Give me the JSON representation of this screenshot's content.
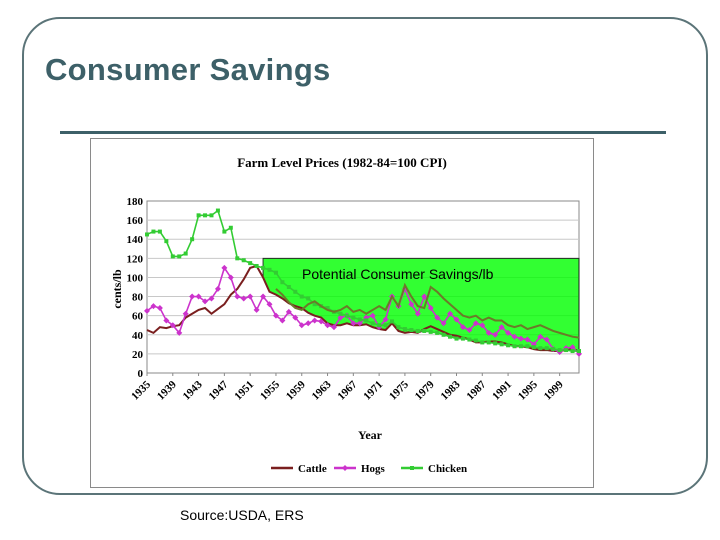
{
  "slide": {
    "title": "Consumer Savings",
    "source": "Source:USDA, ERS"
  },
  "chart_data": {
    "type": "line",
    "title": "Farm Level Prices (1982-84=100 CPI)",
    "xlabel": "Year",
    "ylabel": "cents/lb",
    "xlim": [
      1935,
      2002
    ],
    "ylim": [
      0,
      180
    ],
    "y_ticks": [
      0,
      20,
      40,
      60,
      80,
      100,
      120,
      140,
      160,
      180
    ],
    "x_ticks": [
      1935,
      1939,
      1943,
      1947,
      1951,
      1955,
      1959,
      1963,
      1967,
      1971,
      1975,
      1979,
      1983,
      1987,
      1991,
      1995,
      1999
    ],
    "grid": "horizontal",
    "legend": "bottom",
    "annotation": "Potential Consumer Savings/lb",
    "annotation_region": {
      "color": "#00ff00",
      "x_start": 1953,
      "x_end": 2002,
      "top": 120
    },
    "series": [
      {
        "name": "Cattle",
        "color": "#7a1f1f",
        "marker": "none",
        "x": [
          1935,
          1936,
          1937,
          1938,
          1939,
          1940,
          1941,
          1942,
          1943,
          1944,
          1945,
          1946,
          1947,
          1948,
          1949,
          1950,
          1951,
          1952,
          1953,
          1954,
          1955,
          1956,
          1957,
          1958,
          1959,
          1960,
          1961,
          1962,
          1963,
          1964,
          1965,
          1966,
          1967,
          1968,
          1969,
          1970,
          1971,
          1972,
          1973,
          1974,
          1975,
          1976,
          1977,
          1978,
          1979,
          1980,
          1981,
          1982,
          1983,
          1984,
          1985,
          1986,
          1987,
          1988,
          1989,
          1990,
          1991,
          1992,
          1993,
          1994,
          1995,
          1996,
          1997,
          1998,
          1999,
          2000,
          2001,
          2002
        ],
        "values": [
          45,
          42,
          48,
          47,
          49,
          50,
          58,
          62,
          66,
          68,
          62,
          67,
          72,
          82,
          88,
          98,
          110,
          112,
          100,
          85,
          82,
          78,
          73,
          70,
          68,
          63,
          60,
          58,
          52,
          50,
          50,
          52,
          50,
          50,
          51,
          48,
          46,
          45,
          52,
          44,
          42,
          43,
          42,
          46,
          49,
          46,
          43,
          40,
          39,
          37,
          35,
          32,
          32,
          33,
          33,
          32,
          30,
          28,
          28,
          27,
          25,
          24,
          24,
          23,
          23,
          24,
          25,
          23
        ]
      },
      {
        "name": "Hogs",
        "color": "#cc33cc",
        "marker": "diamond",
        "x": [
          1935,
          1936,
          1937,
          1938,
          1939,
          1940,
          1941,
          1942,
          1943,
          1944,
          1945,
          1946,
          1947,
          1948,
          1949,
          1950,
          1951,
          1952,
          1953,
          1954,
          1955,
          1956,
          1957,
          1958,
          1959,
          1960,
          1961,
          1962,
          1963,
          1964,
          1965,
          1966,
          1967,
          1968,
          1969,
          1970,
          1971,
          1972,
          1973,
          1974,
          1975,
          1976,
          1977,
          1978,
          1979,
          1980,
          1981,
          1982,
          1983,
          1984,
          1985,
          1986,
          1987,
          1988,
          1989,
          1990,
          1991,
          1992,
          1993,
          1994,
          1995,
          1996,
          1997,
          1998,
          1999,
          2000,
          2001,
          2002
        ],
        "values": [
          65,
          70,
          68,
          55,
          50,
          42,
          62,
          80,
          80,
          75,
          78,
          88,
          110,
          100,
          80,
          78,
          80,
          66,
          80,
          72,
          60,
          55,
          64,
          58,
          50,
          52,
          55,
          54,
          50,
          48,
          58,
          60,
          52,
          52,
          58,
          60,
          48,
          56,
          80,
          70,
          88,
          72,
          62,
          80,
          68,
          58,
          52,
          62,
          56,
          48,
          45,
          52,
          50,
          42,
          40,
          48,
          42,
          38,
          36,
          35,
          30,
          38,
          35,
          25,
          22,
          26,
          27,
          20
        ]
      },
      {
        "name": "Chicken",
        "color": "#33cc33",
        "marker": "square",
        "x": [
          1935,
          1936,
          1937,
          1938,
          1939,
          1940,
          1941,
          1942,
          1943,
          1944,
          1945,
          1946,
          1947,
          1948,
          1949,
          1950,
          1951,
          1952,
          1953,
          1954,
          1955,
          1956,
          1957,
          1958,
          1959,
          1960,
          1961,
          1962,
          1963,
          1964,
          1965,
          1966,
          1967,
          1968,
          1969,
          1970,
          1971,
          1972,
          1973,
          1974,
          1975,
          1976,
          1977,
          1978,
          1979,
          1980,
          1981,
          1982,
          1983,
          1984,
          1985,
          1986,
          1987,
          1988,
          1989,
          1990,
          1991,
          1992,
          1993,
          1994,
          1995,
          1996,
          1997,
          1998,
          1999,
          2000,
          2001,
          2002
        ],
        "values": [
          145,
          148,
          148,
          138,
          122,
          122,
          125,
          140,
          165,
          165,
          165,
          170,
          148,
          152,
          120,
          118,
          115,
          112,
          110,
          108,
          105,
          95,
          90,
          85,
          80,
          78,
          72,
          70,
          68,
          64,
          62,
          60,
          58,
          56,
          55,
          52,
          50,
          50,
          54,
          48,
          46,
          45,
          44,
          44,
          43,
          42,
          40,
          38,
          36,
          36,
          35,
          34,
          32,
          32,
          31,
          30,
          29,
          28,
          28,
          28,
          27,
          26,
          26,
          25,
          24,
          24,
          23,
          23
        ]
      },
      {
        "name": "",
        "color": "#6b7a2a",
        "marker": "none",
        "x": [
          1955,
          1956,
          1957,
          1958,
          1959,
          1960,
          1961,
          1962,
          1963,
          1964,
          1965,
          1966,
          1967,
          1968,
          1969,
          1970,
          1971,
          1972,
          1973,
          1974,
          1975,
          1976,
          1977,
          1978,
          1979,
          1980,
          1981,
          1982,
          1983,
          1984,
          1985,
          1986,
          1987,
          1988,
          1989,
          1990,
          1991,
          1992,
          1993,
          1994,
          1995,
          1996,
          1997,
          1998,
          1999,
          2000,
          2001,
          2002
        ],
        "values": [
          88,
          82,
          74,
          68,
          66,
          72,
          75,
          70,
          66,
          64,
          66,
          70,
          64,
          66,
          62,
          66,
          70,
          66,
          80,
          70,
          92,
          80,
          70,
          68,
          90,
          85,
          78,
          72,
          66,
          60,
          58,
          60,
          55,
          58,
          55,
          55,
          50,
          48,
          50,
          46,
          48,
          50,
          47,
          44,
          42,
          40,
          38,
          37
        ]
      }
    ]
  }
}
